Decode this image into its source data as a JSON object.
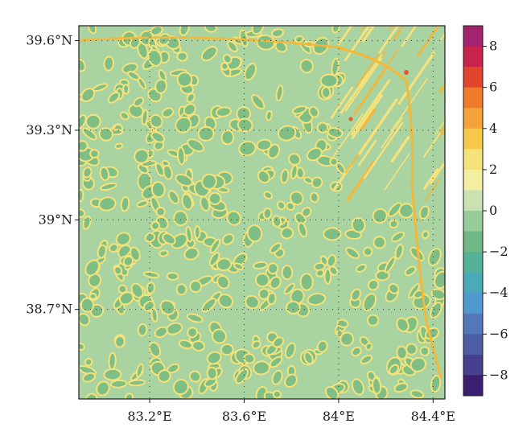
{
  "map": {
    "lat_ticks": [
      {
        "value": 39.6,
        "label": "39.6°N"
      },
      {
        "value": 39.3,
        "label": "39.3°N"
      },
      {
        "value": 39.0,
        "label": "39°N"
      },
      {
        "value": 38.7,
        "label": "38.7°N"
      }
    ],
    "lon_ticks": [
      {
        "value": 83.2,
        "label": "83.2°E"
      },
      {
        "value": 83.6,
        "label": "83.6°E"
      },
      {
        "value": 84.0,
        "label": "84°E"
      },
      {
        "value": 84.4,
        "label": "84.4°E"
      }
    ],
    "lat_range": [
      38.4,
      39.65
    ],
    "lon_range": [
      82.9,
      84.45
    ],
    "grid": "dotted",
    "field_colors": {
      "background": "#a9d3a0",
      "cell_fill": "#7fbf86",
      "ridge": "#f6e27a",
      "ridge_strong": "#f3b83a",
      "peak": "#e8542d"
    }
  },
  "colorbar": {
    "ticks": [
      "8",
      "6",
      "4",
      "2",
      "0",
      "−2",
      "−4",
      "−6",
      "−8"
    ],
    "tick_values": [
      8,
      6,
      4,
      2,
      0,
      -2,
      -4,
      -6,
      -8
    ],
    "range": [
      -9,
      9
    ],
    "colors": [
      "#a2236e",
      "#c8234b",
      "#e2452e",
      "#ee7a2c",
      "#f3a33a",
      "#f6c84a",
      "#f6e27a",
      "#f4eea3",
      "#c9e2b1",
      "#98cc98",
      "#6fb987",
      "#55b197",
      "#4aaab7",
      "#4e9ad0",
      "#5278b9",
      "#4d5ea5",
      "#47408e",
      "#3b1f72"
    ]
  }
}
